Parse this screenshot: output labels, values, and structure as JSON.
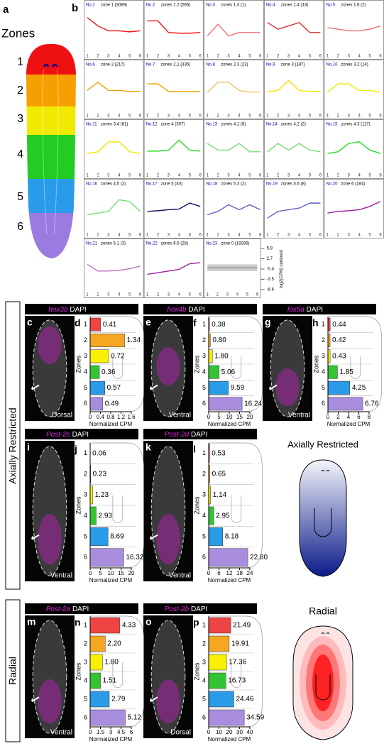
{
  "panel_a": {
    "letter": "a",
    "title": "Zones",
    "zones": [
      "1",
      "2",
      "3",
      "4",
      "5",
      "6"
    ]
  },
  "panel_b": {
    "letter": "b",
    "xticks": [
      1,
      2,
      3,
      4,
      5,
      6
    ],
    "ylim": [
      -6.6,
      5.8
    ],
    "yticks": [
      5.8,
      2.7,
      -0.4,
      -3.5,
      -6.6
    ],
    "ylabel": "log2(CPM) centered",
    "tiles": [
      {
        "id": "No.1",
        "label": "zone 1 (3089)",
        "color": "#ee1111",
        "values": [
          3.5,
          1,
          -0.5,
          -0.5,
          -0.8,
          -0.5
        ]
      },
      {
        "id": "No.2",
        "label": "zones 1.2 (566)",
        "color": "#ee1111",
        "values": [
          2.5,
          2.5,
          -1,
          -1.2,
          -1.2,
          -1
        ]
      },
      {
        "id": "No.3",
        "label": "zones 1.3 (1)",
        "color": "#f07070",
        "values": [
          -2,
          1.5,
          -2,
          -1,
          -1,
          -1
        ]
      },
      {
        "id": "No.4",
        "label": "zones 1.4 (13)",
        "color": "#d83030",
        "values": [
          2,
          0,
          1,
          2,
          -1,
          -1
        ]
      },
      {
        "id": "No.5",
        "label": "zones 1.6 (2)",
        "color": "#f07070",
        "values": [
          0.5,
          0,
          -0.5,
          -0.5,
          0,
          1
        ]
      },
      {
        "id": "No.6",
        "label": "zone 2 (217)",
        "color": "#f5a000",
        "values": [
          -0.5,
          2,
          -0.5,
          -0.5,
          -0.8,
          -0.8
        ]
      },
      {
        "id": "No.7",
        "label": "zones 2.1 (335)",
        "color": "#f5a000",
        "values": [
          1.5,
          1.5,
          -0.8,
          -0.8,
          -0.8,
          -0.8
        ]
      },
      {
        "id": "No.8",
        "label": "zones 2.3 (23)",
        "color": "#f5c060",
        "values": [
          -1,
          2,
          2,
          -0.5,
          -1,
          -1
        ]
      },
      {
        "id": "No.9",
        "label": "zone 3 (187)",
        "color": "#f0e800",
        "values": [
          -0.8,
          -0.5,
          2.5,
          -0.5,
          -0.8,
          -0.8
        ]
      },
      {
        "id": "No.10",
        "label": "zones 3.2 (14)",
        "color": "#f0e800",
        "values": [
          -1,
          1.5,
          1.5,
          -0.5,
          -0.5,
          -1
        ]
      },
      {
        "id": "No.11",
        "label": "zones 3.4 (81)",
        "color": "#f0e800",
        "values": [
          -1.5,
          -1,
          2,
          2,
          -1,
          -1.5
        ]
      },
      {
        "id": "No.12",
        "label": "zone 4 (367)",
        "color": "#22dd22",
        "values": [
          -0.8,
          -0.8,
          -0.5,
          2.5,
          -0.5,
          -0.8
        ]
      },
      {
        "id": "No.13",
        "label": "zones 4.1 (8)",
        "color": "#70e070",
        "values": [
          1.5,
          -0.5,
          -0.5,
          1.5,
          -1,
          -1
        ]
      },
      {
        "id": "No.14",
        "label": "zones 4.2 (2)",
        "color": "#70e070",
        "values": [
          -1,
          1.5,
          -0.5,
          1.5,
          -0.5,
          -1
        ]
      },
      {
        "id": "No.15",
        "label": "zones 4.3 (117)",
        "color": "#22dd22",
        "values": [
          -1.5,
          -1,
          1.5,
          2,
          -0.5,
          -1.5
        ]
      },
      {
        "id": "No.16",
        "label": "zones 4.5 (2)",
        "color": "#70e070",
        "values": [
          -2,
          -1.5,
          -1,
          2.5,
          2,
          -1
        ]
      },
      {
        "id": "No.17",
        "label": "zone 5 (40)",
        "color": "#101060",
        "values": [
          -1,
          -0.8,
          -0.5,
          -0.3,
          1.5,
          0.5
        ]
      },
      {
        "id": "No.18",
        "label": "zones 5.3 (2)",
        "color": "#6060c0",
        "values": [
          -2,
          -1,
          1,
          -0.5,
          1,
          -0.5
        ]
      },
      {
        "id": "No.19",
        "label": "zones 5.6 (8)",
        "color": "#6060c0",
        "values": [
          -3,
          -1,
          -0.5,
          0,
          1.5,
          1.5
        ]
      },
      {
        "id": "No.20",
        "label": "zone 6 (184)",
        "color": "#a020a0",
        "values": [
          -1.5,
          -1,
          -0.8,
          -0.5,
          0.5,
          2
        ]
      },
      {
        "id": "No.21",
        "label": "zones 6.1 (3)",
        "color": "#c070c0",
        "values": [
          1,
          -1,
          -1,
          -0.8,
          -0.3,
          0.5
        ]
      },
      {
        "id": "No.22",
        "label": "zones 6.5 (28)",
        "color": "#a020a0",
        "values": [
          -2,
          -1.5,
          -1,
          -0.5,
          1.2,
          1.5
        ]
      },
      {
        "id": "No.23",
        "label": "zone 0 (19289)",
        "color": "#999999",
        "values": [
          0,
          0,
          0,
          0,
          0,
          0
        ]
      }
    ]
  },
  "sections": [
    "Axially Restricted",
    "Radial"
  ],
  "zone_colors": [
    "#ee4444",
    "#f5a623",
    "#f8f000",
    "#33c433",
    "#2a9be8",
    "#a98ee0"
  ],
  "images": [
    {
      "letter": "c",
      "gene": "hox3b",
      "stain": "DAPI",
      "view": "Dorsal"
    },
    {
      "letter": "e",
      "gene": "hox4b",
      "stain": "DAPI",
      "view": "Ventral"
    },
    {
      "letter": "g",
      "gene": "lox5a",
      "stain": "DAPI",
      "view": "Ventral"
    },
    {
      "letter": "i",
      "gene": "Post-2c",
      "stain": "DAPI",
      "view": "Ventral"
    },
    {
      "letter": "k",
      "gene": "Post-2d",
      "stain": "DAPI",
      "view": "Ventral"
    },
    {
      "letter": "m",
      "gene": "Post-2a",
      "stain": "DAPI",
      "view": "Ventral"
    },
    {
      "letter": "o",
      "gene": "Post-2b",
      "stain": "DAPI",
      "view": "Dorsal"
    }
  ],
  "chart_data": [
    {
      "type": "bar",
      "letter": "d",
      "categories": [
        "1",
        "2",
        "3",
        "4",
        "5",
        "6"
      ],
      "values": [
        0.41,
        1.34,
        0.72,
        0.36,
        0.57,
        0.49
      ],
      "xlim": [
        0,
        1.6
      ],
      "xticks": [
        0,
        0.4,
        0.8,
        1.2,
        1.6
      ],
      "xlabel": "Normalized CPM",
      "ylabel": "Zones"
    },
    {
      "type": "bar",
      "letter": "f",
      "categories": [
        "1",
        "2",
        "3",
        "4",
        "5",
        "6"
      ],
      "values": [
        0.38,
        0.8,
        1.8,
        5.06,
        9.59,
        16.24
      ],
      "value_labels": [
        "0.38",
        "0.80",
        "1.80",
        "5.06",
        "9.59",
        "16.24"
      ],
      "xlim": [
        0,
        20
      ],
      "xticks": [
        0,
        5,
        10,
        15,
        20
      ],
      "xlabel": "Normalized CPM",
      "ylabel": "Zones"
    },
    {
      "type": "bar",
      "letter": "h",
      "categories": [
        "1",
        "2",
        "3",
        "4",
        "5",
        "6"
      ],
      "values": [
        0.44,
        0.42,
        0.43,
        1.85,
        4.25,
        6.76
      ],
      "xlim": [
        0,
        8
      ],
      "xticks": [
        0,
        2,
        4,
        6,
        8
      ],
      "xlabel": "Normalized CPM",
      "ylabel": "Zones"
    },
    {
      "type": "bar",
      "letter": "j",
      "categories": [
        "1",
        "2",
        "3",
        "4",
        "5",
        "6"
      ],
      "values": [
        0.06,
        0.23,
        1.23,
        2.93,
        8.69,
        16.32
      ],
      "xlim": [
        0,
        20
      ],
      "xticks": [
        0,
        5,
        10,
        15,
        20
      ],
      "xlabel": "Normalized CPM",
      "ylabel": "Zones"
    },
    {
      "type": "bar",
      "letter": "l",
      "categories": [
        "1",
        "2",
        "3",
        "4",
        "5",
        "6"
      ],
      "values": [
        0.53,
        0.65,
        1.14,
        2.95,
        8.18,
        22.8
      ],
      "value_labels": [
        "0.53",
        "0.65",
        "1.14",
        "2.95",
        "8.18",
        "22.80"
      ],
      "xlim": [
        0,
        24
      ],
      "xticks": [
        0,
        6,
        12,
        18,
        24
      ],
      "xlabel": "Normalized CPM",
      "ylabel": "Zones"
    },
    {
      "type": "bar",
      "letter": "n",
      "categories": [
        "1",
        "2",
        "3",
        "4",
        "5",
        "6"
      ],
      "values": [
        4.33,
        2.2,
        1.8,
        1.51,
        2.79,
        5.12
      ],
      "value_labels": [
        "4.33",
        "2.20",
        "1.80",
        "1.51",
        "2.79",
        "5.12"
      ],
      "xlim": [
        0,
        6
      ],
      "xticks": [
        0,
        1.5,
        3,
        4.5,
        6
      ],
      "xlabel": "Normalized CPM",
      "ylabel": "Zones"
    },
    {
      "type": "bar",
      "letter": "p",
      "categories": [
        "1",
        "2",
        "3",
        "4",
        "5",
        "6"
      ],
      "values": [
        21.49,
        19.91,
        17.36,
        16.73,
        24.46,
        34.59
      ],
      "xlim": [
        0,
        40
      ],
      "xticks": [
        0,
        10,
        20,
        30,
        40
      ],
      "xlabel": "Normalized CPM",
      "ylabel": "Zones"
    }
  ],
  "schematics": [
    "Axially Restricted",
    "Radial"
  ]
}
